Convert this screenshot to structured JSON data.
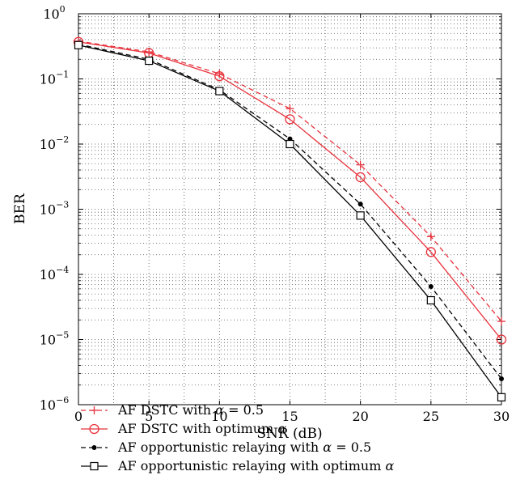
{
  "chart_data": {
    "type": "line",
    "title": "",
    "xlabel": "SNR (dB)",
    "ylabel": "BER",
    "xlim": [
      0,
      30
    ],
    "ylim": [
      1e-06,
      1
    ],
    "yscale": "log",
    "grid": true,
    "legend_position": "below",
    "x": [
      0,
      5,
      10,
      15,
      20,
      25,
      30
    ],
    "x_ticks": [
      "0",
      "5",
      "10",
      "15",
      "20",
      "25",
      "30"
    ],
    "y_ticks": [
      {
        "base": "10",
        "exp": "0",
        "value": 1
      },
      {
        "base": "10",
        "exp": "−1",
        "value": 0.1
      },
      {
        "base": "10",
        "exp": "−2",
        "value": 0.01
      },
      {
        "base": "10",
        "exp": "−3",
        "value": 0.001
      },
      {
        "base": "10",
        "exp": "−4",
        "value": 0.0001
      },
      {
        "base": "10",
        "exp": "−5",
        "value": 1e-05
      },
      {
        "base": "10",
        "exp": "−6",
        "value": 1e-06
      }
    ],
    "series": [
      {
        "name": "AF DSTC with α = 0.5",
        "legend_prefix": "AF DSTC with ",
        "legend_symbol": "α",
        "legend_suffix": " = 0.5",
        "values": [
          0.38,
          0.26,
          0.12,
          0.035,
          0.0048,
          0.00038,
          1.9e-05
        ],
        "color": "#e8313b",
        "dash": "6,4",
        "marker": "plus"
      },
      {
        "name": "AF DSTC with optimum α",
        "legend_prefix": "AF DSTC with optimum ",
        "legend_symbol": "α",
        "legend_suffix": "",
        "values": [
          0.37,
          0.25,
          0.11,
          0.024,
          0.0031,
          0.00022,
          1e-05
        ],
        "color": "#e8313b",
        "dash": "",
        "marker": "circle"
      },
      {
        "name": "AF opportunistic relaying with α = 0.5",
        "legend_prefix": "AF opportunistic relaying with ",
        "legend_symbol": "α",
        "legend_suffix": " = 0.5",
        "values": [
          0.34,
          0.2,
          0.068,
          0.012,
          0.0012,
          6.5e-05,
          2.5e-06
        ],
        "color": "#000000",
        "dash": "6,4",
        "marker": "dot"
      },
      {
        "name": "AF opportunistic relaying with optimum α",
        "legend_prefix": "AF opportunistic relaying with optimum ",
        "legend_symbol": "α",
        "legend_suffix": "",
        "values": [
          0.33,
          0.19,
          0.065,
          0.01,
          0.0008,
          4e-05,
          1.3e-06
        ],
        "color": "#000000",
        "dash": "",
        "marker": "square"
      }
    ]
  }
}
